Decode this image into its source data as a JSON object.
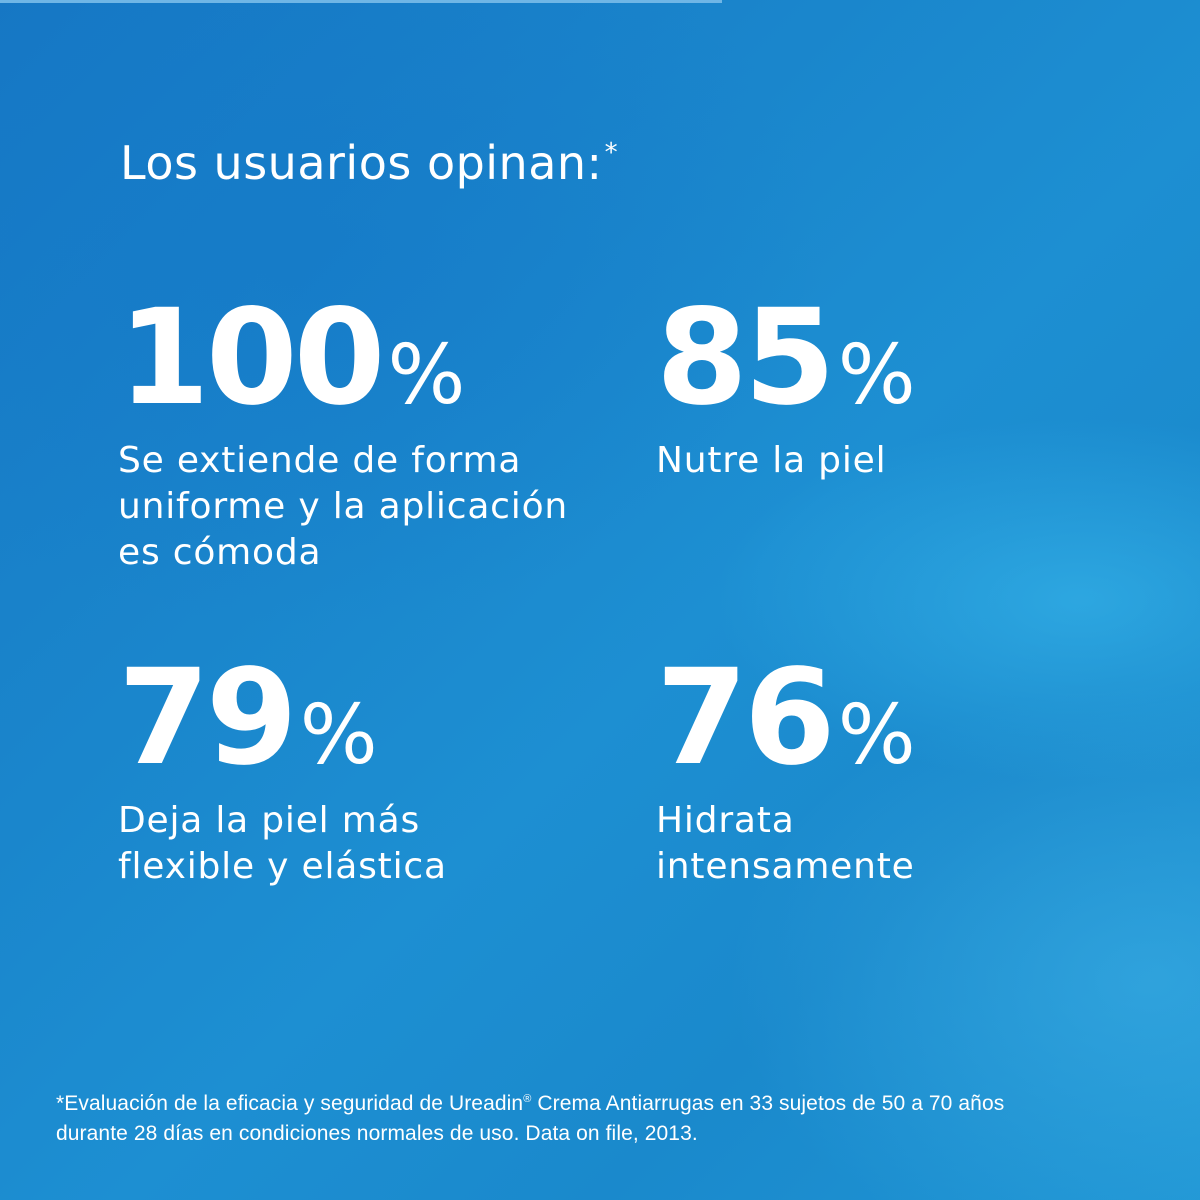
{
  "heading": {
    "text": "Los usuarios opinan:",
    "marker": "*"
  },
  "stats": [
    {
      "value": "100",
      "unit": "%",
      "description_lines": [
        "Se extiende de forma",
        "uniforme y la aplicación",
        "es cómoda"
      ]
    },
    {
      "value": "85",
      "unit": "%",
      "description_lines": [
        "Nutre la piel"
      ]
    },
    {
      "value": "79",
      "unit": "%",
      "description_lines": [
        "Deja la piel más",
        "flexible y elástica"
      ]
    },
    {
      "value": "76",
      "unit": "%",
      "description_lines": [
        "Hidrata",
        "intensamente"
      ]
    }
  ],
  "footnote": {
    "line1_before_mark": "*Evaluación de la eficacia y seguridad de Ureadin",
    "registered_mark": "®",
    "line1_after_mark": " Crema Antiarrugas en 33 sujetos de 50 a 70 años",
    "line2": "durante 28 días en condiciones normales de uso. Data on file, 2013."
  },
  "colors": {
    "background": "#1a86cc",
    "text": "#ffffff"
  }
}
